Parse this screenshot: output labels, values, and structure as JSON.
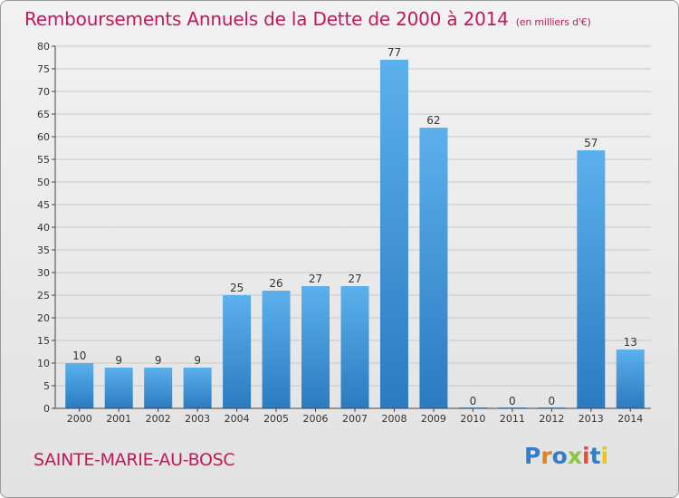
{
  "title": "Remboursements Annuels de la Dette de 2000 à 2014",
  "subtitle": "(en milliers d'€)",
  "place": "SAINTE-MARIE-AU-BOSC",
  "logo": {
    "text": "Proxiti",
    "colors": [
      "#2f7fc9",
      "#e67e22",
      "#2f7fc9",
      "#8dc63f",
      "#e74c3c",
      "#2f7fc9",
      "#f1c40f"
    ]
  },
  "colors": {
    "title": "#c2185b",
    "bar_light": "#5cb0ec",
    "bar_dark": "#2a7bc0",
    "grid": "#c8c8c8"
  },
  "chart_data": {
    "type": "bar",
    "title": "Remboursements Annuels de la Dette de 2000 à 2014",
    "subtitle": "(en milliers d'€)",
    "categories": [
      "2000",
      "2001",
      "2002",
      "2003",
      "2004",
      "2005",
      "2006",
      "2007",
      "2008",
      "2009",
      "2010",
      "2011",
      "2012",
      "2013",
      "2014"
    ],
    "values": [
      10,
      9,
      9,
      9,
      25,
      26,
      27,
      27,
      77,
      62,
      0,
      0,
      0,
      57,
      13
    ],
    "ylim": [
      0,
      80
    ],
    "yticks": [
      0,
      5,
      10,
      15,
      20,
      25,
      30,
      35,
      40,
      45,
      50,
      55,
      60,
      65,
      70,
      75,
      80
    ],
    "grid": true,
    "xlabel": "",
    "ylabel": ""
  }
}
